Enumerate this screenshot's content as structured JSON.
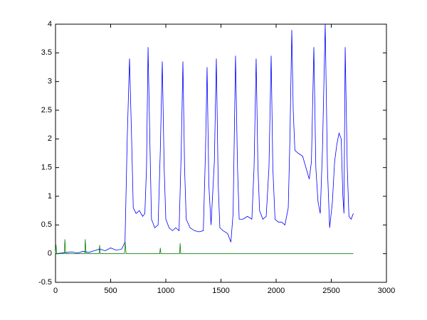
{
  "chart_data": {
    "type": "line",
    "xlim": [
      0,
      3000
    ],
    "xticks": [
      0,
      500,
      1000,
      1500,
      2000,
      2500,
      3000
    ],
    "ylim": [
      -0.5,
      4
    ],
    "yticks": [
      -0.5,
      0,
      0.5,
      1,
      1.5,
      2,
      2.5,
      3,
      3.5,
      4
    ],
    "series": [
      {
        "color": "#0000ff",
        "x": [
          0,
          50,
          100,
          150,
          200,
          250,
          300,
          350,
          400,
          450,
          500,
          550,
          600,
          630,
          650,
          671,
          690,
          705,
          730,
          760,
          790,
          810,
          825,
          839,
          855,
          870,
          900,
          930,
          950,
          968,
          985,
          1000,
          1030,
          1060,
          1090,
          1120,
          1140,
          1155,
          1170,
          1185,
          1220,
          1260,
          1300,
          1340,
          1360,
          1374,
          1390,
          1410,
          1440,
          1458,
          1475,
          1490,
          1520,
          1560,
          1590,
          1610,
          1632,
          1650,
          1665,
          1700,
          1740,
          1780,
          1800,
          1819,
          1835,
          1850,
          1880,
          1910,
          1935,
          1955,
          1970,
          1990,
          2020,
          2050,
          2080,
          2110,
          2125,
          2142,
          2155,
          2170,
          2200,
          2240,
          2270,
          2300,
          2320,
          2342,
          2360,
          2380,
          2400,
          2420,
          2445,
          2465,
          2485,
          2510,
          2530,
          2550,
          2570,
          2590,
          2605,
          2615,
          2626,
          2645,
          2660,
          2680,
          2700
        ],
        "values": [
          0,
          0.01,
          0.02,
          0.03,
          0.01,
          0.04,
          0.02,
          0.05,
          0.08,
          0.05,
          0.1,
          0.06,
          0.08,
          0.2,
          2.0,
          3.4,
          2.0,
          0.8,
          0.7,
          0.75,
          0.65,
          0.7,
          1.5,
          3.6,
          2.0,
          0.6,
          0.45,
          0.5,
          1.8,
          3.35,
          1.5,
          0.6,
          0.45,
          0.4,
          0.45,
          0.4,
          1.8,
          3.35,
          1.5,
          0.6,
          0.45,
          0.4,
          0.38,
          0.4,
          1.8,
          3.25,
          1.2,
          0.5,
          1.6,
          3.4,
          1.2,
          0.45,
          0.4,
          0.35,
          0.2,
          0.7,
          3.45,
          1.5,
          0.6,
          0.6,
          0.65,
          0.6,
          1.5,
          3.4,
          1.5,
          0.75,
          0.6,
          0.65,
          1.5,
          3.45,
          1.5,
          0.6,
          0.55,
          0.55,
          0.5,
          0.8,
          2.0,
          3.9,
          2.5,
          1.8,
          1.75,
          1.7,
          1.5,
          1.3,
          1.6,
          3.6,
          1.5,
          0.9,
          0.7,
          1.8,
          4.0,
          1.5,
          0.45,
          0.9,
          1.6,
          1.9,
          2.1,
          2.0,
          1.0,
          0.7,
          3.6,
          1.5,
          0.65,
          0.6,
          0.7
        ]
      },
      {
        "color": "#008000",
        "x": [
          0,
          5,
          10,
          80,
          85,
          92,
          265,
          270,
          277,
          395,
          400,
          406,
          625,
          632,
          640,
          945,
          950,
          955,
          1125,
          1130,
          1135,
          2700
        ],
        "values": [
          0,
          0.15,
          0,
          0,
          0.25,
          0,
          0,
          0.25,
          0,
          0,
          0.15,
          0,
          0,
          0.2,
          0,
          0,
          0.1,
          0,
          0,
          0.18,
          0,
          0
        ]
      }
    ]
  }
}
